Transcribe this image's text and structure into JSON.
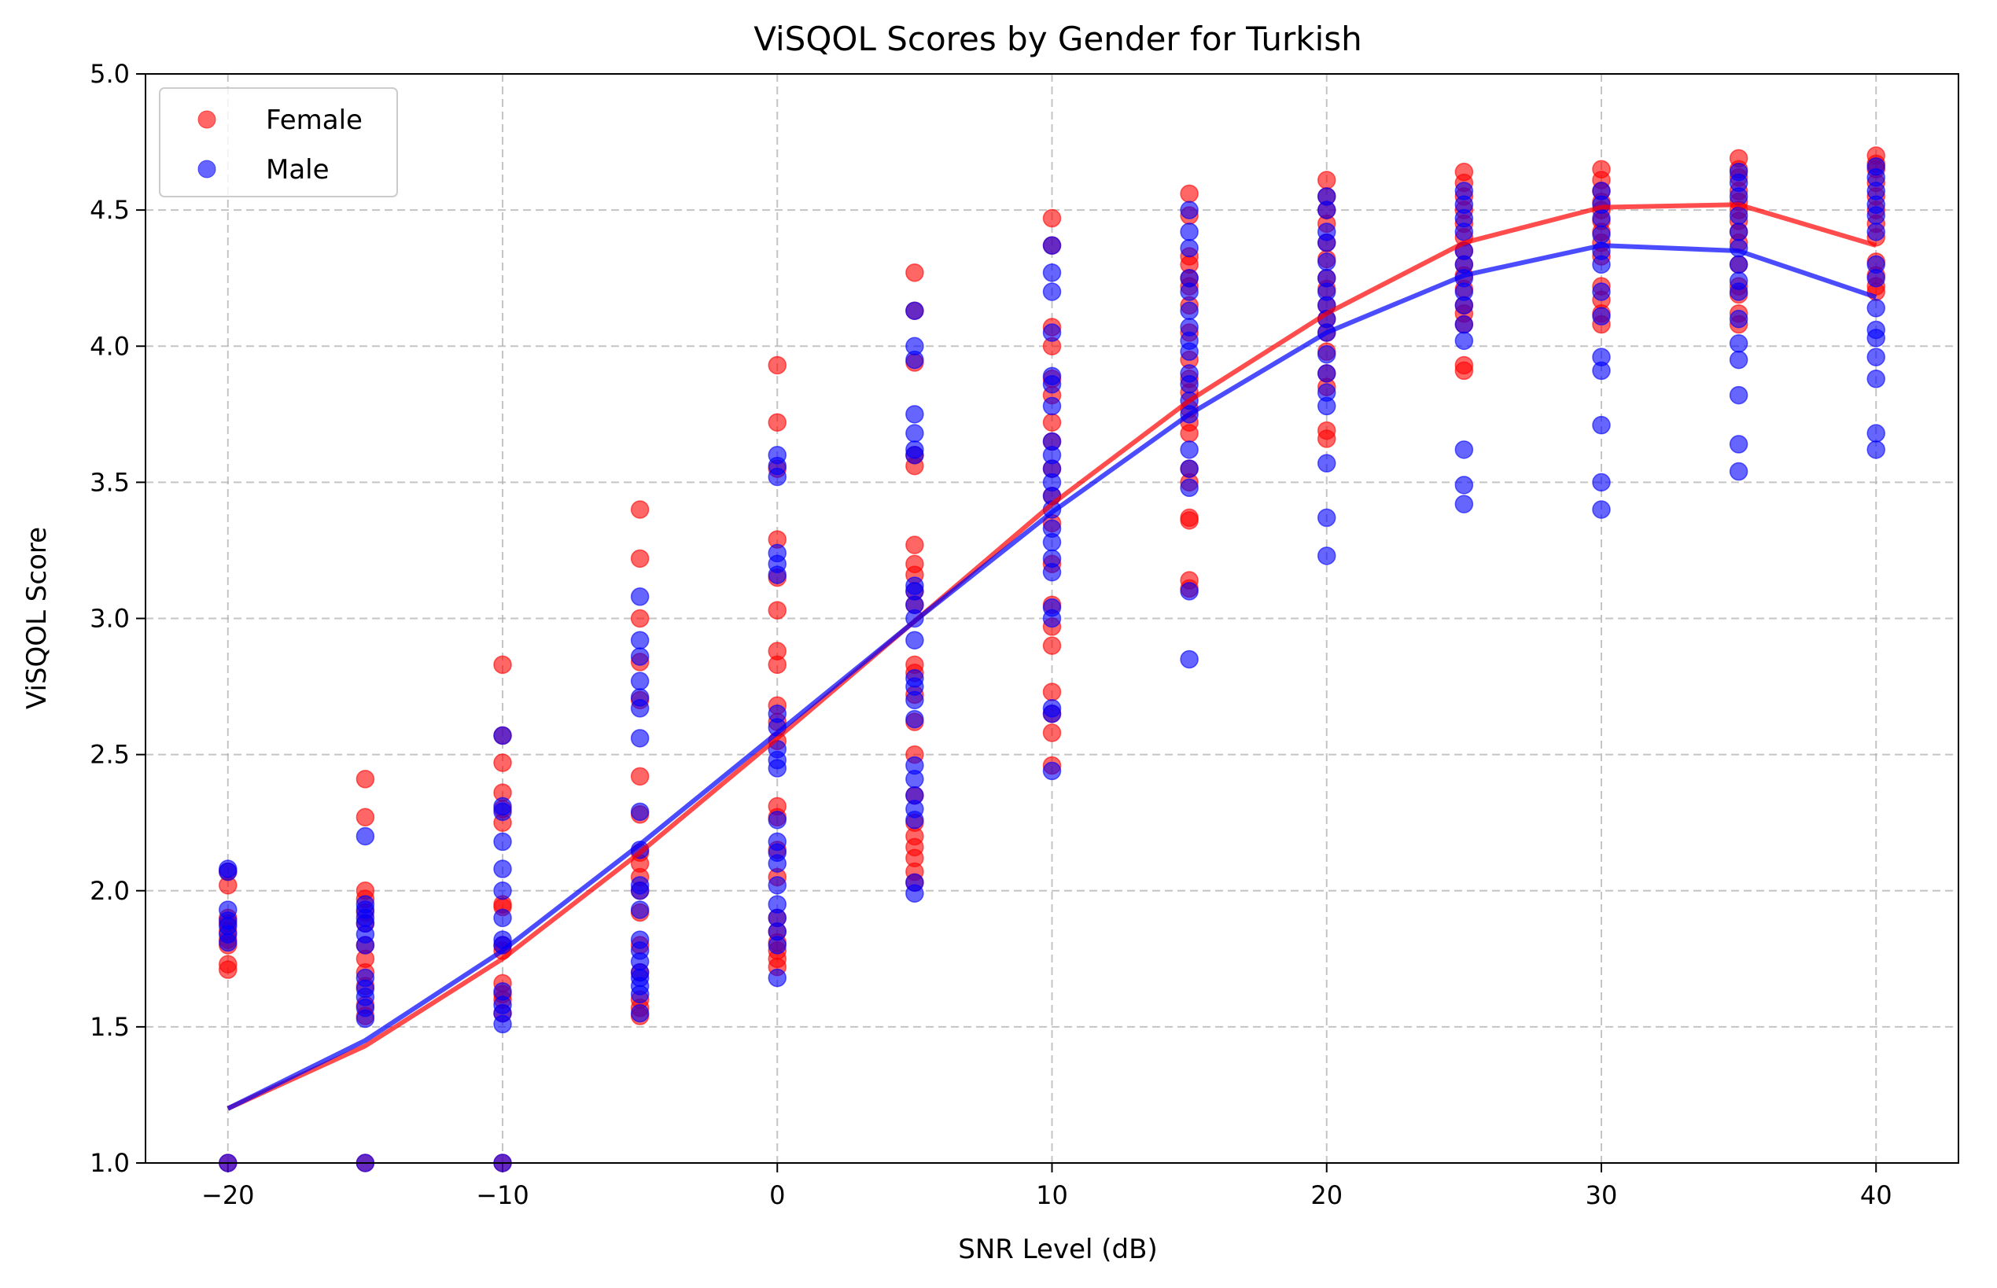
{
  "chart_data": {
    "type": "scatter",
    "title": "ViSQOL Scores by Gender for Turkish",
    "xlabel": "SNR Level (dB)",
    "ylabel": "ViSQOL Score",
    "xlim": [
      -23,
      43
    ],
    "ylim": [
      1.0,
      5.0
    ],
    "xticks": [
      -20,
      -10,
      0,
      10,
      20,
      30,
      40
    ],
    "xtick_labels": [
      "−20",
      "−10",
      "0",
      "10",
      "20",
      "30",
      "40"
    ],
    "yticks": [
      1.0,
      1.5,
      2.0,
      2.5,
      3.0,
      3.5,
      4.0,
      4.5,
      5.0
    ],
    "ytick_labels": [
      "1.0",
      "1.5",
      "2.0",
      "2.5",
      "3.0",
      "3.5",
      "4.0",
      "4.5",
      "5.0"
    ],
    "grid": true,
    "legend_position": "top-left",
    "series": [
      {
        "name": "Female",
        "color": "#ff0000",
        "points": [
          {
            "x": -20,
            "ys": [
              1.0,
              1.71,
              1.73,
              1.8,
              1.82,
              1.85,
              1.88,
              1.9,
              2.02,
              2.07
            ]
          },
          {
            "x": -15,
            "ys": [
              1.0,
              1.54,
              1.58,
              1.65,
              1.7,
              1.75,
              1.8,
              1.88,
              1.92,
              1.97,
              2.0,
              2.27,
              2.41
            ]
          },
          {
            "x": -10,
            "ys": [
              1.0,
              1.55,
              1.6,
              1.62,
              1.66,
              1.78,
              1.8,
              1.94,
              1.95,
              2.25,
              2.3,
              2.36,
              2.47,
              2.57,
              2.83
            ]
          },
          {
            "x": -5,
            "ys": [
              1.54,
              1.57,
              1.6,
              1.7,
              1.8,
              1.92,
              2.0,
              2.05,
              2.1,
              2.14,
              2.28,
              2.42,
              2.7,
              2.84,
              3.0,
              3.22,
              3.4
            ]
          },
          {
            "x": 0,
            "ys": [
              1.72,
              1.75,
              1.78,
              1.81,
              1.85,
              1.9,
              2.05,
              2.15,
              2.27,
              2.31,
              2.55,
              2.62,
              2.68,
              2.83,
              2.88,
              3.03,
              3.15,
              3.29,
              3.55,
              3.72,
              3.93
            ]
          },
          {
            "x": 5,
            "ys": [
              2.03,
              2.07,
              2.12,
              2.16,
              2.2,
              2.25,
              2.35,
              2.5,
              2.62,
              2.72,
              2.8,
              2.83,
              3.05,
              3.1,
              3.16,
              3.2,
              3.27,
              3.56,
              3.6,
              3.94,
              4.13,
              4.27
            ]
          },
          {
            "x": 10,
            "ys": [
              2.46,
              2.58,
              2.65,
              2.73,
              2.9,
              2.97,
              3.05,
              3.2,
              3.35,
              3.45,
              3.55,
              3.65,
              3.72,
              3.82,
              3.88,
              4.0,
              4.07,
              4.37,
              4.47
            ]
          },
          {
            "x": 15,
            "ys": [
              3.11,
              3.14,
              3.36,
              3.37,
              3.5,
              3.55,
              3.68,
              3.72,
              3.77,
              3.83,
              3.88,
              3.95,
              4.05,
              4.15,
              4.22,
              4.25,
              4.3,
              4.33,
              4.48,
              4.56
            ]
          },
          {
            "x": 20,
            "ys": [
              3.66,
              3.69,
              3.85,
              3.9,
              3.98,
              4.05,
              4.1,
              4.15,
              4.21,
              4.25,
              4.32,
              4.38,
              4.45,
              4.5,
              4.55,
              4.61
            ]
          },
          {
            "x": 25,
            "ys": [
              3.91,
              3.93,
              4.08,
              4.12,
              4.15,
              4.21,
              4.26,
              4.3,
              4.35,
              4.4,
              4.45,
              4.5,
              4.55,
              4.6,
              4.64
            ]
          },
          {
            "x": 30,
            "ys": [
              4.08,
              4.12,
              4.17,
              4.22,
              4.33,
              4.38,
              4.42,
              4.46,
              4.5,
              4.53,
              4.57,
              4.61,
              4.65
            ]
          },
          {
            "x": 35,
            "ys": [
              4.08,
              4.12,
              4.19,
              4.22,
              4.3,
              4.38,
              4.42,
              4.46,
              4.5,
              4.53,
              4.57,
              4.62,
              4.65,
              4.69
            ]
          },
          {
            "x": 40,
            "ys": [
              4.2,
              4.22,
              4.26,
              4.31,
              4.4,
              4.45,
              4.5,
              4.55,
              4.6,
              4.65,
              4.67,
              4.7
            ]
          }
        ],
        "trend": [
          {
            "x": -20,
            "y": 1.2
          },
          {
            "x": -15,
            "y": 1.43
          },
          {
            "x": -10,
            "y": 1.75
          },
          {
            "x": -5,
            "y": 2.14
          },
          {
            "x": 0,
            "y": 2.56
          },
          {
            "x": 5,
            "y": 2.99
          },
          {
            "x": 10,
            "y": 3.42
          },
          {
            "x": 15,
            "y": 3.8
          },
          {
            "x": 20,
            "y": 4.12
          },
          {
            "x": 25,
            "y": 4.38
          },
          {
            "x": 30,
            "y": 4.51
          },
          {
            "x": 35,
            "y": 4.52
          },
          {
            "x": 40,
            "y": 4.37
          }
        ]
      },
      {
        "name": "Male",
        "color": "#0000ff",
        "points": [
          {
            "x": -20,
            "ys": [
              1.0,
              1.81,
              1.84,
              1.87,
              1.89,
              1.93,
              2.07,
              2.08
            ]
          },
          {
            "x": -15,
            "ys": [
              1.0,
              1.53,
              1.57,
              1.61,
              1.64,
              1.68,
              1.8,
              1.84,
              1.88,
              1.9,
              1.93,
              1.95,
              2.2
            ]
          },
          {
            "x": -10,
            "ys": [
              1.0,
              1.51,
              1.55,
              1.58,
              1.63,
              1.8,
              1.82,
              1.9,
              2.0,
              2.08,
              2.18,
              2.29,
              2.31,
              2.57
            ]
          },
          {
            "x": -5,
            "ys": [
              1.55,
              1.62,
              1.65,
              1.68,
              1.7,
              1.74,
              1.78,
              1.82,
              1.93,
              2.0,
              2.02,
              2.15,
              2.29,
              2.56,
              2.67,
              2.71,
              2.77,
              2.86,
              2.92,
              3.08
            ]
          },
          {
            "x": 0,
            "ys": [
              1.68,
              1.8,
              1.85,
              1.9,
              1.95,
              2.02,
              2.1,
              2.14,
              2.18,
              2.26,
              2.45,
              2.48,
              2.52,
              2.6,
              2.65,
              3.16,
              3.2,
              3.24,
              3.52,
              3.56,
              3.6
            ]
          },
          {
            "x": 5,
            "ys": [
              1.99,
              2.03,
              2.26,
              2.3,
              2.35,
              2.41,
              2.46,
              2.63,
              2.7,
              2.75,
              2.78,
              2.92,
              3.0,
              3.05,
              3.1,
              3.12,
              3.6,
              3.62,
              3.68,
              3.75,
              3.95,
              4.0,
              4.13
            ]
          },
          {
            "x": 10,
            "ys": [
              2.44,
              2.65,
              2.67,
              3.0,
              3.04,
              3.17,
              3.22,
              3.28,
              3.33,
              3.4,
              3.45,
              3.5,
              3.55,
              3.6,
              3.65,
              3.78,
              3.86,
              3.89,
              4.05,
              4.2,
              4.27,
              4.37
            ]
          },
          {
            "x": 15,
            "ys": [
              2.85,
              3.1,
              3.48,
              3.55,
              3.62,
              3.75,
              3.8,
              3.86,
              3.9,
              3.98,
              4.02,
              4.07,
              4.13,
              4.2,
              4.25,
              4.36,
              4.42,
              4.5
            ]
          },
          {
            "x": 20,
            "ys": [
              3.23,
              3.37,
              3.57,
              3.78,
              3.83,
              3.9,
              3.97,
              4.05,
              4.1,
              4.15,
              4.2,
              4.25,
              4.31,
              4.38,
              4.42,
              4.5,
              4.55
            ]
          },
          {
            "x": 25,
            "ys": [
              3.42,
              3.49,
              3.62,
              4.02,
              4.08,
              4.15,
              4.2,
              4.25,
              4.3,
              4.35,
              4.42,
              4.47,
              4.52,
              4.57
            ]
          },
          {
            "x": 30,
            "ys": [
              3.4,
              3.5,
              3.71,
              3.91,
              3.96,
              4.11,
              4.2,
              4.3,
              4.35,
              4.41,
              4.47,
              4.52,
              4.57
            ]
          },
          {
            "x": 35,
            "ys": [
              3.54,
              3.64,
              3.82,
              3.95,
              4.01,
              4.1,
              4.2,
              4.24,
              4.3,
              4.36,
              4.42,
              4.48,
              4.55,
              4.6,
              4.64
            ]
          },
          {
            "x": 40,
            "ys": [
              3.62,
              3.68,
              3.88,
              3.96,
              4.03,
              4.06,
              4.14,
              4.25,
              4.3,
              4.42,
              4.48,
              4.52,
              4.57,
              4.62,
              4.66
            ]
          }
        ],
        "trend": [
          {
            "x": -20,
            "y": 1.2
          },
          {
            "x": -15,
            "y": 1.45
          },
          {
            "x": -10,
            "y": 1.78
          },
          {
            "x": -5,
            "y": 2.17
          },
          {
            "x": 0,
            "y": 2.58
          },
          {
            "x": 5,
            "y": 2.99
          },
          {
            "x": 10,
            "y": 3.39
          },
          {
            "x": 15,
            "y": 3.75
          },
          {
            "x": 20,
            "y": 4.05
          },
          {
            "x": 25,
            "y": 4.26
          },
          {
            "x": 30,
            "y": 4.37
          },
          {
            "x": 35,
            "y": 4.35
          },
          {
            "x": 40,
            "y": 4.18
          }
        ]
      }
    ]
  }
}
